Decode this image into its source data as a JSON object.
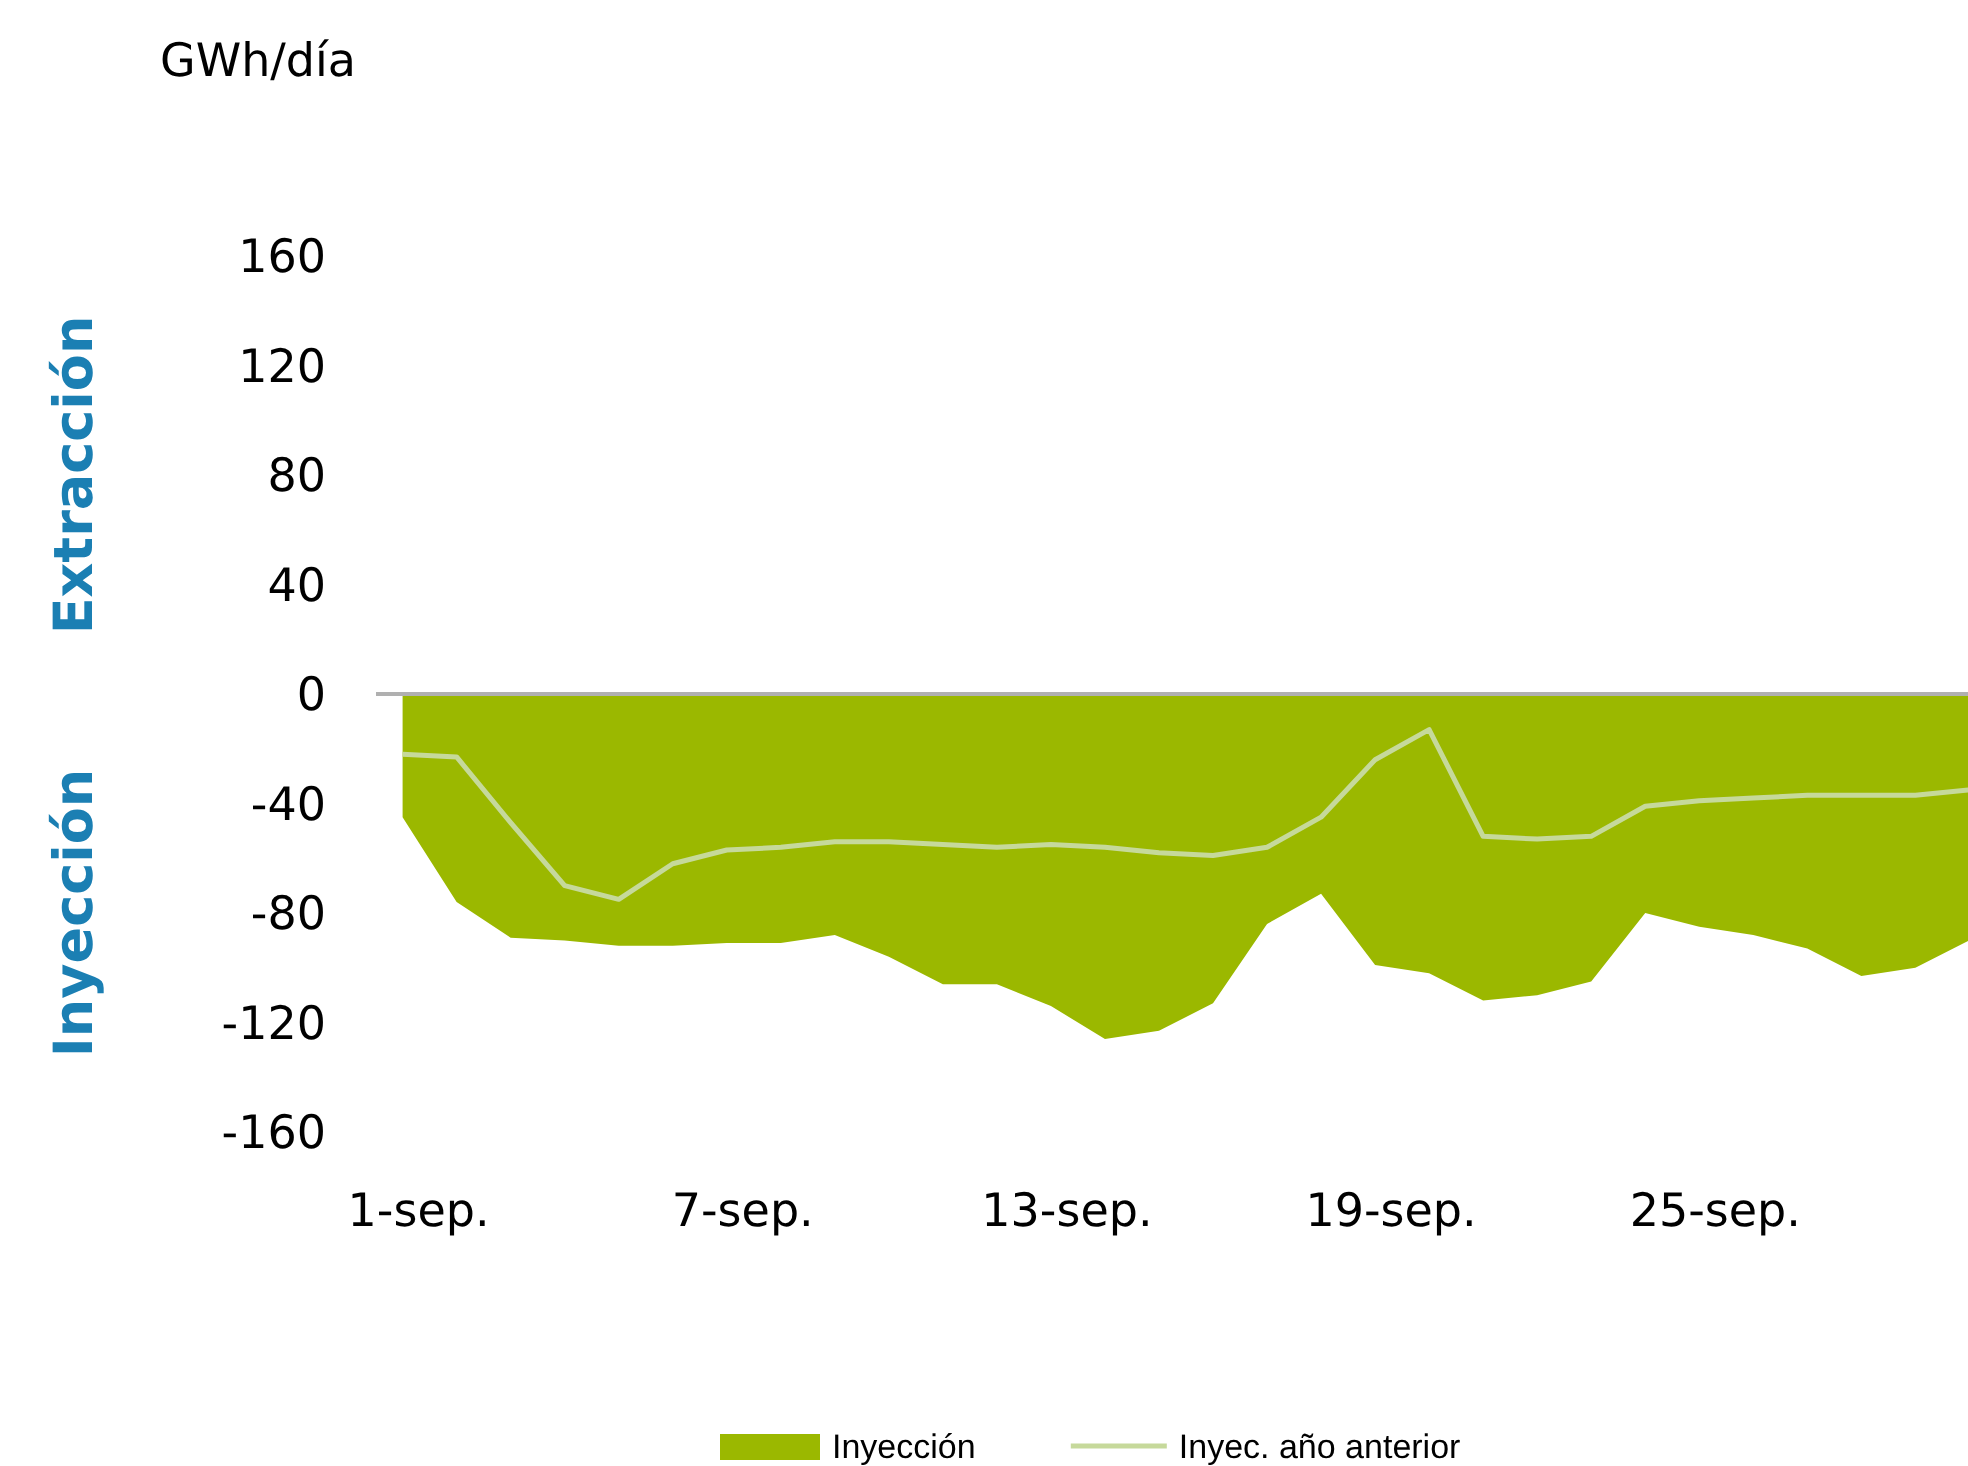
{
  "chart_data": {
    "type": "area",
    "ylabel": "GWh/día",
    "annotations": [
      "Extracción",
      "Inyección"
    ],
    "categories": [
      "1-sep.",
      null,
      null,
      null,
      null,
      null,
      "7-sep.",
      null,
      null,
      null,
      null,
      null,
      "13-sep.",
      null,
      null,
      null,
      null,
      null,
      "19-sep.",
      null,
      null,
      null,
      null,
      null,
      "25-sep.",
      null,
      null,
      null,
      null,
      null
    ],
    "ylim": [
      -160,
      160
    ],
    "yticks": [
      -160,
      -120,
      -80,
      -40,
      0,
      40,
      80,
      120,
      160
    ],
    "legend": "bottom",
    "series": [
      {
        "name": "Inyección",
        "color": "#9bb800",
        "values": [
          -45,
          -76,
          -89,
          -90,
          -92,
          -92,
          -91,
          -91,
          -88,
          -96,
          -106,
          -106,
          -114,
          -126,
          -123,
          -113,
          -84,
          -73,
          -99,
          -102,
          -112,
          -110,
          -105,
          -80,
          -85,
          -88,
          -93,
          -103,
          -100,
          -90
        ]
      },
      {
        "name": "Inyec. año anterior",
        "type": "line",
        "color": "#c6d99b",
        "values": [
          -22,
          -23,
          -47,
          -70,
          -75,
          -62,
          -57,
          -56,
          -54,
          -54,
          -55,
          -56,
          -55,
          -56,
          -58,
          -59,
          -56,
          -45,
          -24,
          -13,
          -52,
          -53,
          -52,
          -41,
          -39,
          -38,
          -37,
          -37,
          -37,
          -35
        ]
      }
    ]
  }
}
